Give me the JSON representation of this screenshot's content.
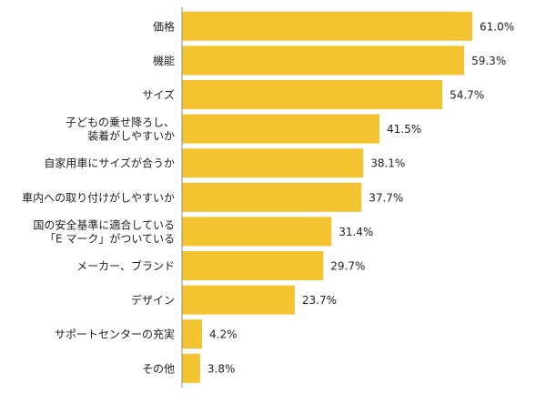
{
  "chart_data": {
    "type": "bar",
    "orientation": "horizontal",
    "categories": [
      [
        "価格"
      ],
      [
        "機能"
      ],
      [
        "サイズ"
      ],
      [
        "子どもの乗せ降ろし、",
        "装着がしやすいか"
      ],
      [
        "自家用車にサイズが合うか"
      ],
      [
        "車内への取り付けがしやすいか"
      ],
      [
        "国の安全基準に適合している",
        "「E マーク」がついている"
      ],
      [
        "メーカー、ブランド"
      ],
      [
        "デザイン"
      ],
      [
        "サポートセンターの充実"
      ],
      [
        "その他"
      ]
    ],
    "values": [
      61.0,
      59.3,
      54.7,
      41.5,
      38.1,
      37.7,
      31.4,
      29.7,
      23.7,
      4.2,
      3.8
    ],
    "value_labels": [
      "61.0%",
      "59.3%",
      "54.7%",
      "41.5%",
      "38.1%",
      "37.7%",
      "31.4%",
      "29.7%",
      "23.7%",
      "4.2%",
      "3.8%"
    ],
    "xlim": [
      0,
      61.0
    ],
    "grid": false,
    "bar_color": "#F4C430",
    "axis_color": "#888888"
  }
}
